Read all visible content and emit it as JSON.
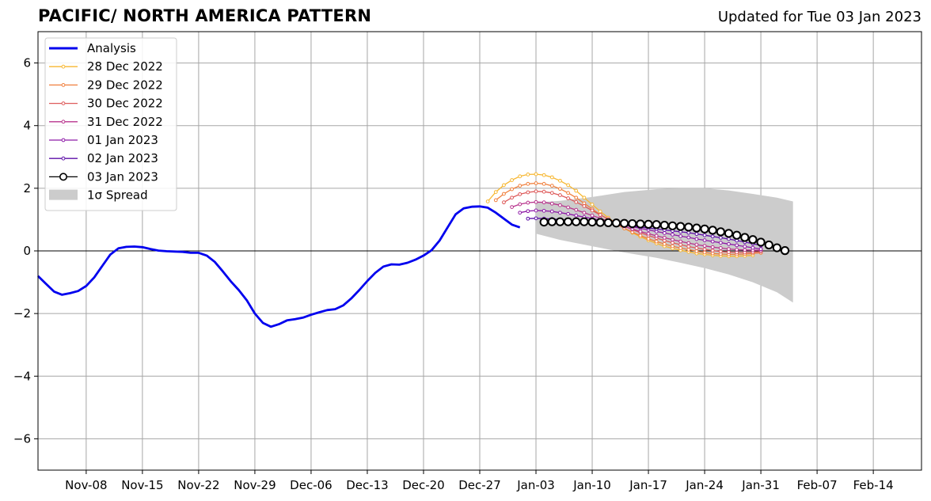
{
  "header": {
    "title": "PACIFIC/ NORTH AMERICA PATTERN",
    "subtitle": "Updated for Tue 03 Jan 2023"
  },
  "chart_data": {
    "type": "line",
    "title": "PACIFIC/ NORTH AMERICA PATTERN",
    "subtitle": "Updated for Tue 03 Jan 2023",
    "xlabel": "",
    "ylabel": "",
    "x_axis": {
      "type": "date",
      "range": [
        "2022-11-02",
        "2023-02-20"
      ],
      "ticks": [
        {
          "date": "2022-11-08",
          "label": "Nov-08"
        },
        {
          "date": "2022-11-15",
          "label": "Nov-15"
        },
        {
          "date": "2022-11-22",
          "label": "Nov-22"
        },
        {
          "date": "2022-11-29",
          "label": "Nov-29"
        },
        {
          "date": "2022-12-06",
          "label": "Dec-06"
        },
        {
          "date": "2022-12-13",
          "label": "Dec-13"
        },
        {
          "date": "2022-12-20",
          "label": "Dec-20"
        },
        {
          "date": "2022-12-27",
          "label": "Dec-27"
        },
        {
          "date": "2023-01-03",
          "label": "Jan-03"
        },
        {
          "date": "2023-01-10",
          "label": "Jan-10"
        },
        {
          "date": "2023-01-17",
          "label": "Jan-17"
        },
        {
          "date": "2023-01-24",
          "label": "Jan-24"
        },
        {
          "date": "2023-01-31",
          "label": "Jan-31"
        },
        {
          "date": "2023-02-07",
          "label": "Feb-07"
        },
        {
          "date": "2023-02-14",
          "label": "Feb-14"
        }
      ]
    },
    "y_axis": {
      "range": [
        -7,
        7
      ],
      "ticks": [
        {
          "value": -6,
          "label": "−6"
        },
        {
          "value": -4,
          "label": "−4"
        },
        {
          "value": -2,
          "label": "−2"
        },
        {
          "value": 0,
          "label": "0"
        },
        {
          "value": 2,
          "label": "2"
        },
        {
          "value": 4,
          "label": "4"
        },
        {
          "value": 6,
          "label": "6"
        }
      ]
    },
    "grid": true,
    "legend_position": "top-left",
    "analysis": {
      "name": "Analysis",
      "color": "#0000ee",
      "points": [
        [
          "2022-11-02",
          -0.8
        ],
        [
          "2022-11-03",
          -1.05
        ],
        [
          "2022-11-04",
          -1.3
        ],
        [
          "2022-11-05",
          -1.4
        ],
        [
          "2022-11-06",
          -1.35
        ],
        [
          "2022-11-07",
          -1.28
        ],
        [
          "2022-11-08",
          -1.12
        ],
        [
          "2022-11-09",
          -0.85
        ],
        [
          "2022-11-10",
          -0.48
        ],
        [
          "2022-11-11",
          -0.12
        ],
        [
          "2022-11-12",
          0.08
        ],
        [
          "2022-11-13",
          0.13
        ],
        [
          "2022-11-14",
          0.14
        ],
        [
          "2022-11-15",
          0.12
        ],
        [
          "2022-11-16",
          0.06
        ],
        [
          "2022-11-17",
          0.01
        ],
        [
          "2022-11-18",
          -0.01
        ],
        [
          "2022-11-19",
          -0.02
        ],
        [
          "2022-11-20",
          -0.03
        ],
        [
          "2022-11-21",
          -0.06
        ],
        [
          "2022-11-22",
          -0.06
        ],
        [
          "2022-11-23",
          -0.15
        ],
        [
          "2022-11-24",
          -0.35
        ],
        [
          "2022-11-25",
          -0.65
        ],
        [
          "2022-11-26",
          -0.97
        ],
        [
          "2022-11-27",
          -1.25
        ],
        [
          "2022-11-28",
          -1.58
        ],
        [
          "2022-11-29",
          -2.0
        ],
        [
          "2022-11-30",
          -2.3
        ],
        [
          "2022-12-01",
          -2.42
        ],
        [
          "2022-12-02",
          -2.34
        ],
        [
          "2022-12-03",
          -2.22
        ],
        [
          "2022-12-04",
          -2.18
        ],
        [
          "2022-12-05",
          -2.13
        ],
        [
          "2022-12-06",
          -2.04
        ],
        [
          "2022-12-07",
          -1.96
        ],
        [
          "2022-12-08",
          -1.89
        ],
        [
          "2022-12-09",
          -1.86
        ],
        [
          "2022-12-10",
          -1.74
        ],
        [
          "2022-12-11",
          -1.52
        ],
        [
          "2022-12-12",
          -1.25
        ],
        [
          "2022-12-13",
          -0.96
        ],
        [
          "2022-12-14",
          -0.7
        ],
        [
          "2022-12-15",
          -0.5
        ],
        [
          "2022-12-16",
          -0.43
        ],
        [
          "2022-12-17",
          -0.44
        ],
        [
          "2022-12-18",
          -0.38
        ],
        [
          "2022-12-19",
          -0.28
        ],
        [
          "2022-12-20",
          -0.15
        ],
        [
          "2022-12-21",
          0.02
        ],
        [
          "2022-12-22",
          0.33
        ],
        [
          "2022-12-23",
          0.75
        ],
        [
          "2022-12-24",
          1.17
        ],
        [
          "2022-12-25",
          1.36
        ],
        [
          "2022-12-26",
          1.41
        ],
        [
          "2022-12-27",
          1.42
        ],
        [
          "2022-12-28",
          1.38
        ],
        [
          "2022-12-29",
          1.22
        ],
        [
          "2022-12-30",
          1.03
        ],
        [
          "2022-12-31",
          0.84
        ],
        [
          "2023-01-01",
          0.75
        ]
      ]
    },
    "forecasts": [
      {
        "name": "28 Dec 2022",
        "color": "#f7b731",
        "start": "2022-12-28",
        "values": [
          1.58,
          1.88,
          2.1,
          2.26,
          2.38,
          2.44,
          2.45,
          2.42,
          2.35,
          2.24,
          2.1,
          1.92,
          1.7,
          1.48,
          1.26,
          1.06,
          0.88,
          0.72,
          0.58,
          0.45,
          0.34,
          0.24,
          0.15,
          0.08,
          0.02,
          -0.03,
          -0.08,
          -0.11,
          -0.14,
          -0.16,
          -0.17,
          -0.17,
          -0.16,
          -0.14
        ]
      },
      {
        "name": "29 Dec 2022",
        "color": "#f07f3c",
        "start": "2022-12-29",
        "values": [
          1.62,
          1.82,
          1.97,
          2.08,
          2.14,
          2.16,
          2.14,
          2.08,
          1.98,
          1.85,
          1.7,
          1.52,
          1.34,
          1.16,
          1.0,
          0.86,
          0.72,
          0.6,
          0.49,
          0.39,
          0.3,
          0.22,
          0.15,
          0.09,
          0.04,
          -0.01,
          -0.05,
          -0.08,
          -0.1,
          -0.11,
          -0.11,
          -0.1,
          -0.08,
          -0.06
        ]
      },
      {
        "name": "30 Dec 2022",
        "color": "#de5a5a",
        "start": "2022-12-30",
        "values": [
          1.55,
          1.7,
          1.81,
          1.87,
          1.9,
          1.89,
          1.85,
          1.78,
          1.68,
          1.56,
          1.43,
          1.29,
          1.15,
          1.02,
          0.9,
          0.79,
          0.68,
          0.58,
          0.49,
          0.41,
          0.33,
          0.26,
          0.2,
          0.14,
          0.09,
          0.05,
          0.01,
          -0.02,
          -0.04,
          -0.05,
          -0.05,
          -0.04,
          -0.02
        ]
      },
      {
        "name": "31 Dec 2022",
        "color": "#b8338d",
        "start": "2022-12-31",
        "values": [
          1.4,
          1.49,
          1.54,
          1.56,
          1.55,
          1.51,
          1.46,
          1.39,
          1.31,
          1.22,
          1.13,
          1.04,
          0.95,
          0.86,
          0.78,
          0.7,
          0.62,
          0.55,
          0.48,
          0.42,
          0.36,
          0.3,
          0.25,
          0.2,
          0.16,
          0.12,
          0.09,
          0.06,
          0.04,
          0.03,
          0.02,
          0.02
        ]
      },
      {
        "name": "01 Jan 2023",
        "color": "#8e1aa8",
        "start": "2023-01-01",
        "values": [
          1.22,
          1.27,
          1.29,
          1.28,
          1.26,
          1.22,
          1.18,
          1.13,
          1.08,
          1.03,
          0.98,
          0.92,
          0.87,
          0.82,
          0.77,
          0.72,
          0.67,
          0.62,
          0.57,
          0.52,
          0.47,
          0.43,
          0.38,
          0.34,
          0.3,
          0.26,
          0.22,
          0.18,
          0.14,
          0.1,
          0.06
        ]
      },
      {
        "name": "02 Jan 2023",
        "color": "#5d0fa8",
        "start": "2023-01-02",
        "values": [
          1.03,
          1.04,
          1.03,
          1.02,
          1.0,
          0.98,
          0.96,
          0.94,
          0.92,
          0.89,
          0.87,
          0.84,
          0.81,
          0.79,
          0.76,
          0.73,
          0.7,
          0.67,
          0.64,
          0.61,
          0.58,
          0.54,
          0.5,
          0.46,
          0.42,
          0.38,
          0.33,
          0.28,
          0.23,
          0.17
        ]
      },
      {
        "name": "03 Jan 2023",
        "color": "#000000",
        "start": "2023-01-04",
        "marker": "open-circle",
        "values": [
          0.92,
          0.93,
          0.93,
          0.93,
          0.93,
          0.93,
          0.92,
          0.91,
          0.9,
          0.89,
          0.88,
          0.87,
          0.86,
          0.85,
          0.84,
          0.82,
          0.8,
          0.78,
          0.76,
          0.73,
          0.7,
          0.66,
          0.61,
          0.56,
          0.5,
          0.43,
          0.36,
          0.28,
          0.19,
          0.1,
          0.01
        ]
      }
    ],
    "spread": {
      "name": "1σ Spread",
      "color": "#cccccc",
      "points": [
        [
          "2023-01-03",
          1.55,
          0.55
        ],
        [
          "2023-01-06",
          1.6,
          0.35
        ],
        [
          "2023-01-10",
          1.72,
          0.15
        ],
        [
          "2023-01-14",
          1.88,
          -0.05
        ],
        [
          "2023-01-18",
          1.97,
          -0.22
        ],
        [
          "2023-01-21",
          2.0,
          -0.38
        ],
        [
          "2023-01-24",
          2.0,
          -0.55
        ],
        [
          "2023-01-27",
          1.93,
          -0.75
        ],
        [
          "2023-01-30",
          1.82,
          -1.0
        ],
        [
          "2023-02-02",
          1.7,
          -1.32
        ],
        [
          "2023-02-04",
          1.58,
          -1.65
        ]
      ]
    },
    "legend": [
      {
        "label": "Analysis",
        "color": "#0000ee",
        "style": "thick-line"
      },
      {
        "label": "28 Dec 2022",
        "color": "#f7b731",
        "style": "line-dot"
      },
      {
        "label": "29 Dec 2022",
        "color": "#f07f3c",
        "style": "line-dot"
      },
      {
        "label": "30 Dec 2022",
        "color": "#de5a5a",
        "style": "line-dot"
      },
      {
        "label": "31 Dec 2022",
        "color": "#b8338d",
        "style": "line-dot"
      },
      {
        "label": "01 Jan 2023",
        "color": "#8e1aa8",
        "style": "line-dot"
      },
      {
        "label": "02 Jan 2023",
        "color": "#5d0fa8",
        "style": "line-dot"
      },
      {
        "label": "03 Jan 2023",
        "color": "#000000",
        "style": "line-open-circle"
      },
      {
        "label": "1σ Spread",
        "color": "#cccccc",
        "style": "patch"
      }
    ]
  }
}
